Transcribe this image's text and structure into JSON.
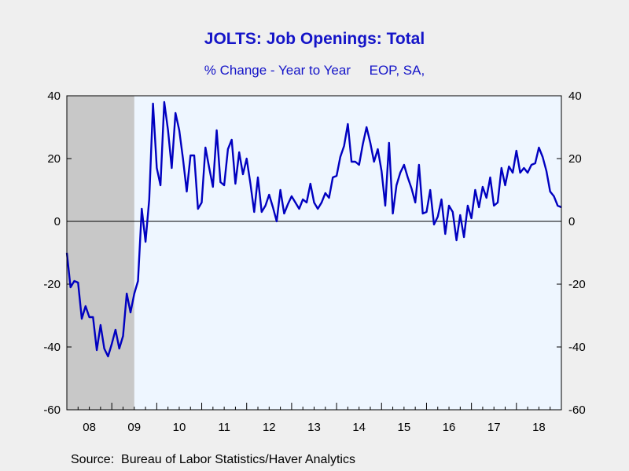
{
  "source": "Source:  Bureau of Labor Statistics/Haver Analytics",
  "chart_data": {
    "type": "line",
    "title": "JOLTS: Job Openings: Total",
    "subtitle": "% Change - Year to Year     EOP, SA,",
    "ylim": [
      -60,
      40
    ],
    "yticks": [
      40,
      20,
      0,
      -20,
      -40,
      -60
    ],
    "xlim": [
      2008.0,
      2019.0
    ],
    "x_tick_labels": [
      "08",
      "09",
      "10",
      "11",
      "12",
      "13",
      "14",
      "15",
      "16",
      "17",
      "18"
    ],
    "recession_shading": {
      "start": 2008.0,
      "end": 2009.5
    },
    "grid": false,
    "legend": "none",
    "colors": {
      "line": "#0000c0",
      "plot_bg": "#eef6ff",
      "shade": "#c8c8c8",
      "text": "#1414c8"
    },
    "series": [
      {
        "x": [
          2008.0,
          2008.083,
          2008.167,
          2008.25,
          2008.333,
          2008.417,
          2008.5,
          2008.583,
          2008.667,
          2008.75,
          2008.833,
          2008.917,
          2009.0,
          2009.083,
          2009.167,
          2009.25,
          2009.333,
          2009.417,
          2009.5,
          2009.583,
          2009.667,
          2009.75,
          2009.833,
          2009.917,
          2010.0,
          2010.083,
          2010.167,
          2010.25,
          2010.333,
          2010.417,
          2010.5,
          2010.583,
          2010.667,
          2010.75,
          2010.833,
          2010.917,
          2011.0,
          2011.083,
          2011.167,
          2011.25,
          2011.333,
          2011.417,
          2011.5,
          2011.583,
          2011.667,
          2011.75,
          2011.833,
          2011.917,
          2012.0,
          2012.083,
          2012.167,
          2012.25,
          2012.333,
          2012.417,
          2012.5,
          2012.583,
          2012.667,
          2012.75,
          2012.833,
          2012.917,
          2013.0,
          2013.083,
          2013.167,
          2013.25,
          2013.333,
          2013.417,
          2013.5,
          2013.583,
          2013.667,
          2013.75,
          2013.833,
          2013.917,
          2014.0,
          2014.083,
          2014.167,
          2014.25,
          2014.333,
          2014.417,
          2014.5,
          2014.583,
          2014.667,
          2014.75,
          2014.833,
          2014.917,
          2015.0,
          2015.083,
          2015.167,
          2015.25,
          2015.333,
          2015.417,
          2015.5,
          2015.583,
          2015.667,
          2015.75,
          2015.833,
          2015.917,
          2016.0,
          2016.083,
          2016.167,
          2016.25,
          2016.333,
          2016.417,
          2016.5,
          2016.583,
          2016.667,
          2016.75,
          2016.833,
          2016.917,
          2017.0,
          2017.083,
          2017.167,
          2017.25,
          2017.333,
          2017.417,
          2017.5,
          2017.583,
          2017.667,
          2017.75,
          2017.833,
          2017.917,
          2018.0,
          2018.083,
          2018.167,
          2018.25,
          2018.333,
          2018.417,
          2018.5,
          2018.583,
          2018.667,
          2018.75,
          2018.833,
          2018.917,
          2019.0
        ],
        "values": [
          -10,
          -21,
          -19,
          -19.5,
          -31,
          -27,
          -30.5,
          -30.5,
          -41,
          -33,
          -40.5,
          -43,
          -39,
          -34.5,
          -40.5,
          -36.5,
          -23,
          -29,
          -23,
          -19,
          4,
          -6.5,
          7,
          37.5,
          17,
          11.5,
          38,
          29,
          17,
          34.5,
          29,
          20,
          9.5,
          21,
          21,
          4,
          6,
          23.5,
          17,
          11,
          29,
          12.5,
          11.5,
          23,
          26,
          12,
          22,
          15,
          20,
          12,
          3,
          14,
          3,
          5,
          8.5,
          4.5,
          0,
          10,
          2.5,
          5.5,
          8,
          6,
          4,
          7,
          6,
          12,
          6,
          4,
          6,
          9,
          7.5,
          14,
          14.5,
          20.5,
          24,
          31,
          19,
          19,
          18,
          24.5,
          30,
          25,
          19,
          23,
          16,
          5,
          25,
          2.5,
          11.5,
          15.5,
          18,
          14,
          10.5,
          6,
          18,
          2.5,
          3,
          10,
          -1,
          1.5,
          7,
          -4,
          5,
          3,
          -6,
          2,
          -5,
          5,
          1,
          10,
          4.5,
          11,
          7.5,
          14,
          5,
          6,
          17,
          11.5,
          17.5,
          15.5,
          22.5,
          15.5,
          17,
          15.5,
          18,
          18.5,
          23.5,
          20.5,
          16,
          9.5,
          8,
          5,
          4.5
        ]
      }
    ]
  }
}
